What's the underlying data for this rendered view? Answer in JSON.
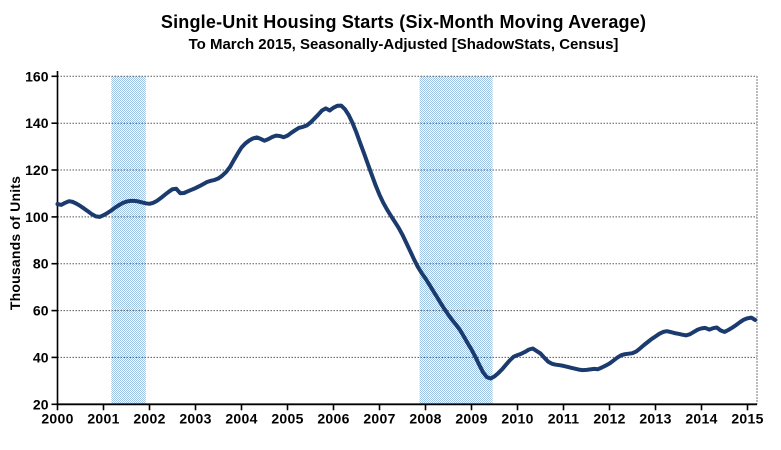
{
  "chart_data": {
    "type": "line",
    "title": "Single-Unit Housing Starts (Six-Month Moving Average)",
    "subtitle": "To March 2015, Seasonally-Adjusted [ShadowStats, Census]",
    "ylabel": "Thousands of Units",
    "xlabel": "",
    "legend": "none",
    "grid": "horizontal-dotted",
    "ylim": [
      20,
      160
    ],
    "y_ticks": [
      20,
      40,
      60,
      80,
      100,
      120,
      140,
      160
    ],
    "x_ticks": [
      2000,
      2001,
      2002,
      2003,
      2004,
      2005,
      2006,
      2007,
      2008,
      2009,
      2010,
      2011,
      2012,
      2013,
      2014,
      2015
    ],
    "x_start_year": 2000,
    "x_end": 2015.25,
    "recession_bands": [
      {
        "from": 2001.17,
        "to": 2001.92
      },
      {
        "from": 2007.87,
        "to": 2009.46
      }
    ],
    "series": [
      {
        "name": "Single-Unit Housing Starts (Six-Month Moving Average)",
        "frequency": "monthly",
        "start": "2000-01",
        "end": "2015-03",
        "values": [
          105.5,
          105.1,
          106.0,
          106.7,
          106.4,
          105.6,
          104.6,
          103.5,
          102.3,
          101.1,
          100.2,
          100.0,
          100.7,
          101.6,
          102.7,
          103.9,
          105.0,
          105.9,
          106.5,
          106.8,
          106.8,
          106.6,
          106.2,
          105.8,
          105.6,
          106.0,
          106.9,
          108.1,
          109.4,
          110.7,
          111.8,
          112.0,
          110.1,
          110.2,
          110.9,
          111.6,
          112.3,
          113.1,
          114.0,
          114.9,
          115.4,
          115.8,
          116.4,
          117.6,
          119.2,
          121.3,
          124.2,
          127.0,
          129.6,
          131.3,
          132.6,
          133.5,
          133.9,
          133.3,
          132.5,
          133.2,
          134.1,
          134.7,
          134.5,
          134.0,
          134.7,
          135.9,
          137.0,
          138.0,
          138.4,
          139.0,
          140.3,
          141.9,
          143.6,
          145.4,
          146.3,
          145.4,
          146.6,
          147.4,
          147.5,
          145.9,
          143.4,
          139.9,
          135.9,
          131.4,
          126.9,
          122.4,
          117.9,
          113.4,
          109.4,
          106.0,
          103.0,
          100.4,
          97.9,
          95.3,
          92.3,
          88.9,
          85.4,
          81.9,
          78.7,
          76.0,
          73.7,
          71.1,
          68.4,
          65.8,
          63.1,
          60.5,
          58.1,
          55.9,
          53.9,
          51.7,
          49.0,
          46.1,
          43.4,
          40.3,
          36.9,
          33.7,
          31.6,
          31.0,
          31.9,
          33.3,
          35.0,
          36.9,
          38.8,
          40.3,
          41.0,
          41.6,
          42.4,
          43.4,
          43.8,
          42.7,
          41.7,
          39.9,
          38.2,
          37.3,
          36.9,
          36.7,
          36.4,
          36.0,
          35.6,
          35.2,
          34.8,
          34.6,
          34.7,
          34.9,
          35.1,
          35.0,
          35.7,
          36.5,
          37.4,
          38.6,
          39.9,
          40.9,
          41.4,
          41.6,
          41.8,
          42.6,
          43.9,
          45.3,
          46.6,
          47.9,
          49.0,
          50.1,
          50.9,
          51.2,
          50.8,
          50.4,
          50.1,
          49.7,
          49.4,
          49.9,
          50.9,
          51.9,
          52.4,
          52.6,
          51.9,
          52.5,
          52.8,
          51.5,
          50.9,
          51.7,
          52.7,
          53.8,
          55.0,
          56.1,
          56.7,
          57.0,
          56.0
        ]
      }
    ],
    "colors": {
      "line": "#1b3a6d",
      "band": "#9dc3e6",
      "grid": "#5a5a5a",
      "axis": "#000000",
      "plot_border": "#808080",
      "text": "#000000",
      "background": "#ffffff"
    }
  }
}
